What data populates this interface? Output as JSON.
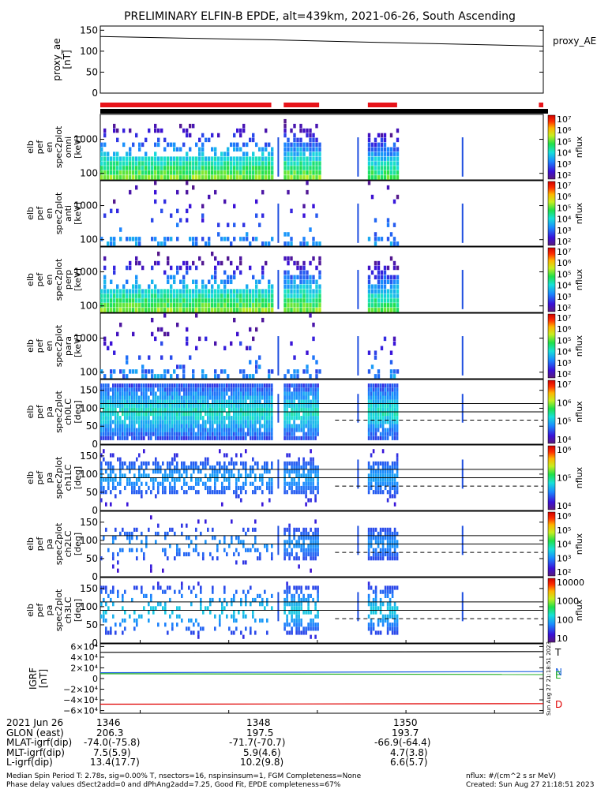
{
  "title": "PRELIMINARY ELFIN-B EPDE, alt=439km, 2021-06-26, South Ascending",
  "chart_data": [
    {
      "type": "line",
      "id": "proxy_ae",
      "ylabel_lines": [
        "proxy_ae",
        "[nT]"
      ],
      "legend": "proxy_AE",
      "yticks": [
        "150",
        "100",
        "50",
        "0"
      ],
      "yrange": [
        0,
        160
      ],
      "series": [
        {
          "x": [
            1345.55,
            1346.5,
            1347.5,
            1348.5,
            1349.5,
            1350.55
          ],
          "values": [
            135,
            131,
            127,
            122,
            117,
            112
          ]
        }
      ]
    },
    {
      "type": "bar",
      "id": "science-zones",
      "note": "red bars = science collection intervals",
      "intervals": [
        [
          1345.55,
          1347.48
        ],
        [
          1347.62,
          1348.02
        ],
        [
          1348.57,
          1348.9
        ],
        [
          1350.5,
          1350.55
        ]
      ]
    },
    {
      "type": "heatmap",
      "id": "spec-omni",
      "ylabel_lines": [
        "elb",
        "pef",
        "en",
        "spec2plot",
        "omni",
        "[keV]"
      ],
      "yticks": [
        "1000",
        "100"
      ],
      "colorbar_ticks": [
        "10⁷",
        "10⁶",
        "10⁵",
        "10⁴",
        "10³",
        "10²"
      ],
      "colorbar_label": "nflux"
    },
    {
      "type": "heatmap",
      "id": "spec-anti",
      "ylabel_lines": [
        "elb",
        "pef",
        "en",
        "spec2plot",
        "anti",
        "[keV]"
      ],
      "yticks": [
        "1000",
        "100"
      ],
      "colorbar_ticks": [
        "10⁷",
        "10⁶",
        "10⁵",
        "10⁴",
        "10³",
        "10²"
      ],
      "colorbar_label": "nflux"
    },
    {
      "type": "heatmap",
      "id": "spec-perp",
      "ylabel_lines": [
        "elb",
        "pef",
        "en",
        "spec2plot",
        "perp",
        "[keV]"
      ],
      "yticks": [
        "1000",
        "100"
      ],
      "colorbar_ticks": [
        "10⁷",
        "10⁶",
        "10⁵",
        "10⁴",
        "10³",
        "10²"
      ],
      "colorbar_label": "nflux"
    },
    {
      "type": "heatmap",
      "id": "spec-para",
      "ylabel_lines": [
        "elb",
        "pef",
        "en",
        "spec2plot",
        "para",
        "[keV]"
      ],
      "yticks": [
        "1000",
        "100"
      ],
      "colorbar_ticks": [
        "10⁷",
        "10⁶",
        "10⁵",
        "10⁴",
        "10³",
        "10²"
      ],
      "colorbar_label": "nflux"
    },
    {
      "type": "heatmap",
      "id": "pa-ch0",
      "ylabel_lines": [
        "elb",
        "pef",
        "pa",
        "spec2plot",
        "ch0LC",
        "[deg]"
      ],
      "yticks": [
        "150",
        "100",
        "50",
        "0"
      ],
      "colorbar_ticks": [
        "10⁷",
        "10⁶",
        "10⁵",
        "10⁴"
      ],
      "colorbar_label": "nflux"
    },
    {
      "type": "heatmap",
      "id": "pa-ch1",
      "ylabel_lines": [
        "elb",
        "pef",
        "pa",
        "spec2plot",
        "ch1LC",
        "[deg]"
      ],
      "yticks": [
        "150",
        "100",
        "50",
        "0"
      ],
      "colorbar_ticks": [
        "10⁶",
        "10⁵",
        "10⁴"
      ],
      "colorbar_label": "nflux"
    },
    {
      "type": "heatmap",
      "id": "pa-ch2",
      "ylabel_lines": [
        "elb",
        "pef",
        "pa",
        "spec2plot",
        "ch2LC",
        "[deg]"
      ],
      "yticks": [
        "150",
        "100",
        "50",
        "0"
      ],
      "colorbar_ticks": [
        "10⁶",
        "10⁵",
        "10⁴",
        "10³",
        "10²"
      ],
      "colorbar_label": "nflux"
    },
    {
      "type": "heatmap",
      "id": "pa-ch3",
      "ylabel_lines": [
        "elb",
        "pef",
        "pa",
        "spec2plot",
        "ch3LC",
        "[deg]"
      ],
      "yticks": [
        "150",
        "100",
        "50",
        "0"
      ],
      "colorbar_ticks": [
        "10000",
        "1000",
        "100",
        "10"
      ],
      "colorbar_label": "nflux"
    },
    {
      "type": "line",
      "id": "igrf",
      "ylabel_lines": [
        "IGRF",
        "[nT]"
      ],
      "yticks": [
        "6×10⁴",
        "4×10⁴",
        "2×10⁴",
        "0",
        "−2×10⁴",
        "−4×10⁴",
        "−6×10⁴"
      ],
      "yrange": [
        -65000,
        65000
      ],
      "series": [
        {
          "name": "T",
          "color": "#000000",
          "x": [
            1345.55,
            1350.55
          ],
          "values": [
            49000,
            50500
          ]
        },
        {
          "name": "N",
          "color": "#1a5fe0",
          "x": [
            1345.55,
            1350.55
          ],
          "values": [
            11000,
            13000
          ]
        },
        {
          "name": "E",
          "color": "#1fae1f",
          "x": [
            1345.55,
            1350.55
          ],
          "values": [
            9000,
            7500
          ]
        },
        {
          "name": "D",
          "color": "#e00000",
          "x": [
            1345.55,
            1350.55
          ],
          "values": [
            -48000,
            -47000
          ]
        }
      ],
      "stamp": "Sun Aug 27 21:18:51 2023"
    }
  ],
  "footer": {
    "date": "2021 Jun 26",
    "ticks": [
      "1346",
      "1348",
      "1350"
    ],
    "rows": [
      {
        "label": "GLON (east)",
        "values": [
          "206.3",
          "197.5",
          "193.7"
        ]
      },
      {
        "label": "MLAT-igrf(dip)",
        "values": [
          "-74.0(-75.8)",
          "-71.7(-70.7)",
          "-66.9(-64.4)"
        ]
      },
      {
        "label": "MLT-igrf(dip)",
        "values": [
          "7.5(5.9)",
          "5.9(4.6)",
          "4.7(3.8)"
        ]
      },
      {
        "label": "L-igrf(dip)",
        "values": [
          "13.4(17.7)",
          "10.2(9.8)",
          "6.6(5.7)"
        ]
      }
    ],
    "note_line1": "Median Spin Period T: 2.78s, sig=0.00% T, nsectors=16, nspinsinsum=1, FGM Completeness=None",
    "note_line2": "Phase delay values dSect2add=0 and dPhAng2add=7.25, Good Fit, EPDE completeness=67%",
    "units": "nflux: #/(cm^2 s sr MeV)",
    "created": "Created: Sun Aug 27 21:18:51 2023"
  },
  "colors": {
    "science_bar": "#e8141a",
    "frame": "#000000"
  }
}
